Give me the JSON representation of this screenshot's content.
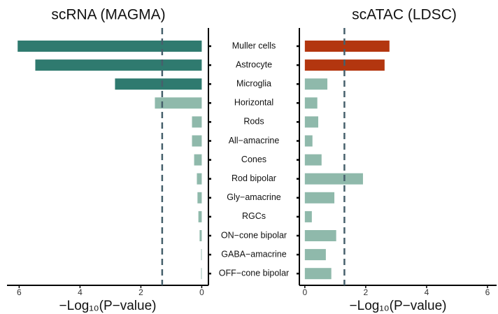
{
  "chart_data": [
    {
      "type": "bar",
      "orientation": "horizontal",
      "title": "scRNA (MAGMA)",
      "x_label": "−Log₁₀(P−value)",
      "categories": [
        "Muller cells",
        "Astrocyte",
        "Microglia",
        "Horizontal",
        "Rods",
        "All−amacrine",
        "Cones",
        "Rod bipolar",
        "Gly−amacrine",
        "RGCs",
        "ON−cone bipolar",
        "GABA−amacrine",
        "OFF−cone bipolar"
      ],
      "values": [
        6.05,
        5.47,
        2.85,
        1.54,
        0.32,
        0.32,
        0.25,
        0.16,
        0.14,
        0.11,
        0.07,
        0.02,
        0.02
      ],
      "colors": [
        "#2f7a6f",
        "#2f7a6f",
        "#2f7a6f",
        "#8fb9ab",
        "#8fb9ab",
        "#8fb9ab",
        "#8fb9ab",
        "#8fb9ab",
        "#8fb9ab",
        "#8fb9ab",
        "#8fb9ab",
        "#8fb9ab",
        "#8fb9ab"
      ],
      "xlim": [
        6.4,
        -0.22
      ],
      "xticks": [
        6,
        4,
        2,
        0
      ],
      "threshold": 1.3
    },
    {
      "type": "bar",
      "orientation": "horizontal",
      "title": "scATAC (LDSC)",
      "x_label": "−Log₁₀(P−value)",
      "values": [
        2.78,
        2.62,
        0.74,
        0.41,
        0.44,
        0.25,
        0.55,
        1.91,
        0.97,
        0.23,
        1.03,
        0.69,
        0.87
      ],
      "colors": [
        "#b3360f",
        "#b3360f",
        "#8fb9ab",
        "#8fb9ab",
        "#8fb9ab",
        "#8fb9ab",
        "#8fb9ab",
        "#8fb9ab",
        "#8fb9ab",
        "#8fb9ab",
        "#8fb9ab",
        "#8fb9ab",
        "#8fb9ab"
      ],
      "xlim": [
        -0.18,
        6.3
      ],
      "xticks": [
        0,
        2,
        4,
        6
      ],
      "threshold": 1.3
    }
  ]
}
